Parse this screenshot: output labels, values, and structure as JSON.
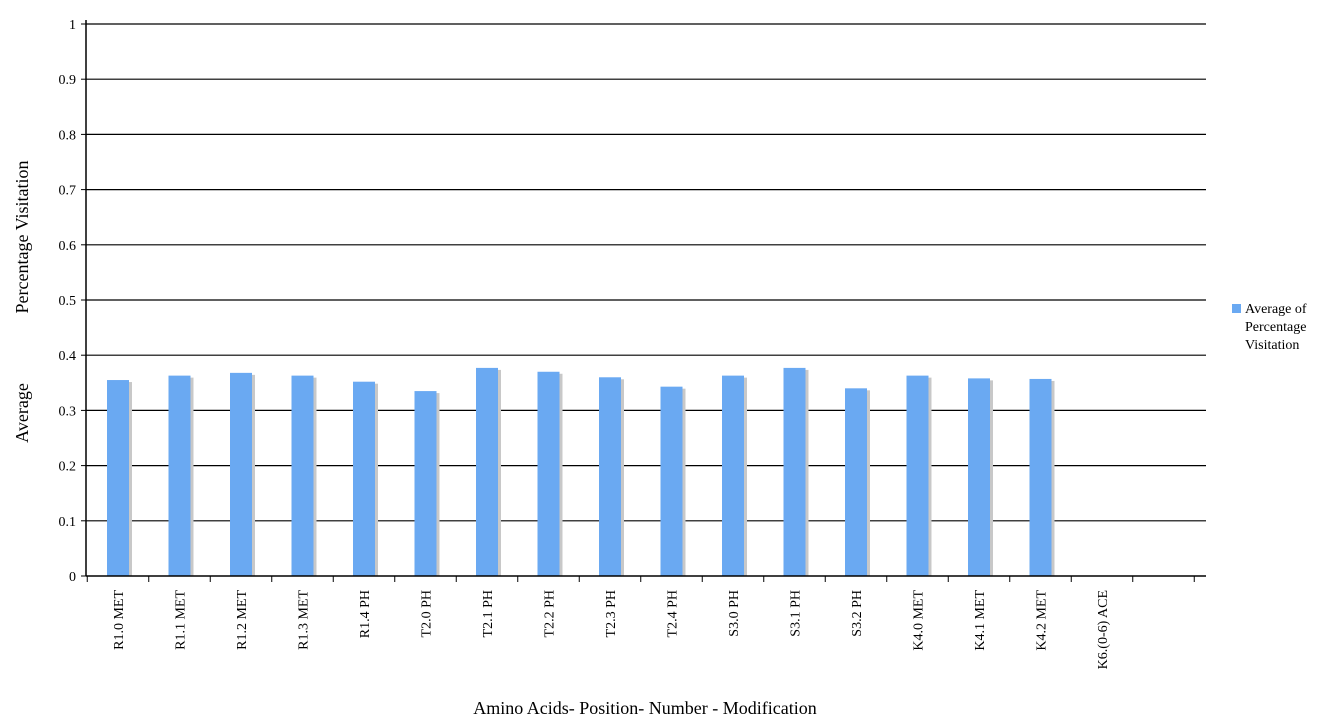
{
  "chart_data": {
    "type": "bar",
    "title": "",
    "xlabel": "Amino Acids- Position- Number - Modification",
    "ylabel_lines": [
      "Average",
      "Percentage Visitation"
    ],
    "ylim": [
      0,
      1
    ],
    "yticks": [
      "0",
      "0.1",
      "0.2",
      "0.3",
      "0.4",
      "0.5",
      "0.6",
      "0.7",
      "0.8",
      "0.9",
      "1"
    ],
    "grid": true,
    "legend_position": "right",
    "categories": [
      "R1.0 MET",
      "R1.1 MET",
      "R1.2 MET",
      "R1.3 MET",
      "R1.4 PH",
      "T2.0 PH",
      "T2.1 PH",
      "T2.2 PH",
      "T2.3 PH",
      "T2.4 PH",
      "S3.0 PH",
      "S3.1 PH",
      "S3.2 PH",
      "K4.0 MET",
      "K4.1 MET",
      "K4.2 MET",
      "K6.(0-6) ACE"
    ],
    "series": [
      {
        "name": "Average of Percentage Visitation",
        "legend_lines": [
          "Average of",
          "Percentage",
          "Visitation"
        ],
        "color": "#6aa9f2",
        "values": [
          0.355,
          0.363,
          0.368,
          0.363,
          0.352,
          0.335,
          0.377,
          0.37,
          0.36,
          0.343,
          0.363,
          0.377,
          0.34,
          0.363,
          0.358,
          0.357,
          0
        ]
      }
    ]
  }
}
